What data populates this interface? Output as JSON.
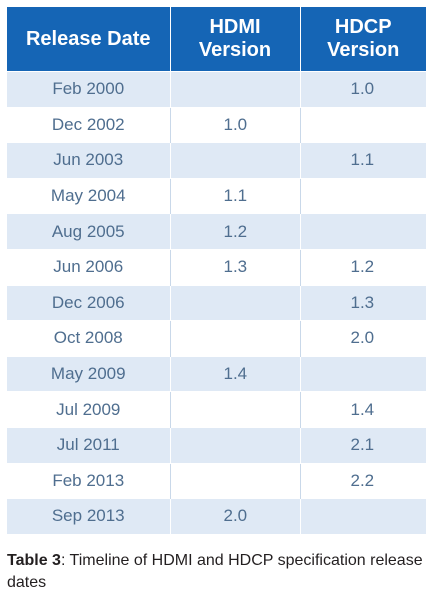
{
  "table": {
    "headers": [
      "Release Date",
      "HDMI Version",
      "HDCP Version"
    ],
    "rows": [
      [
        "Feb 2000",
        "",
        "1.0"
      ],
      [
        "Dec 2002",
        "1.0",
        ""
      ],
      [
        "Jun 2003",
        "",
        "1.1"
      ],
      [
        "May 2004",
        "1.1",
        ""
      ],
      [
        "Aug 2005",
        "1.2",
        ""
      ],
      [
        "Jun 2006",
        "1.3",
        "1.2"
      ],
      [
        "Dec 2006",
        "",
        "1.3"
      ],
      [
        "Oct 2008",
        "",
        "2.0"
      ],
      [
        "May 2009",
        "1.4",
        ""
      ],
      [
        "Jul 2009",
        "",
        "1.4"
      ],
      [
        "Jul 2011",
        "",
        "2.1"
      ],
      [
        "Feb 2013",
        "",
        "2.2"
      ],
      [
        "Sep 2013",
        "2.0",
        ""
      ]
    ]
  },
  "caption": {
    "label": "Table 3",
    "text": ": Timeline of HDMI and HDCP specification release dates"
  },
  "colors": {
    "header_bg": "#1565b5",
    "row_alt_bg": "#dfe9f5",
    "cell_text": "#4f6e8f"
  }
}
